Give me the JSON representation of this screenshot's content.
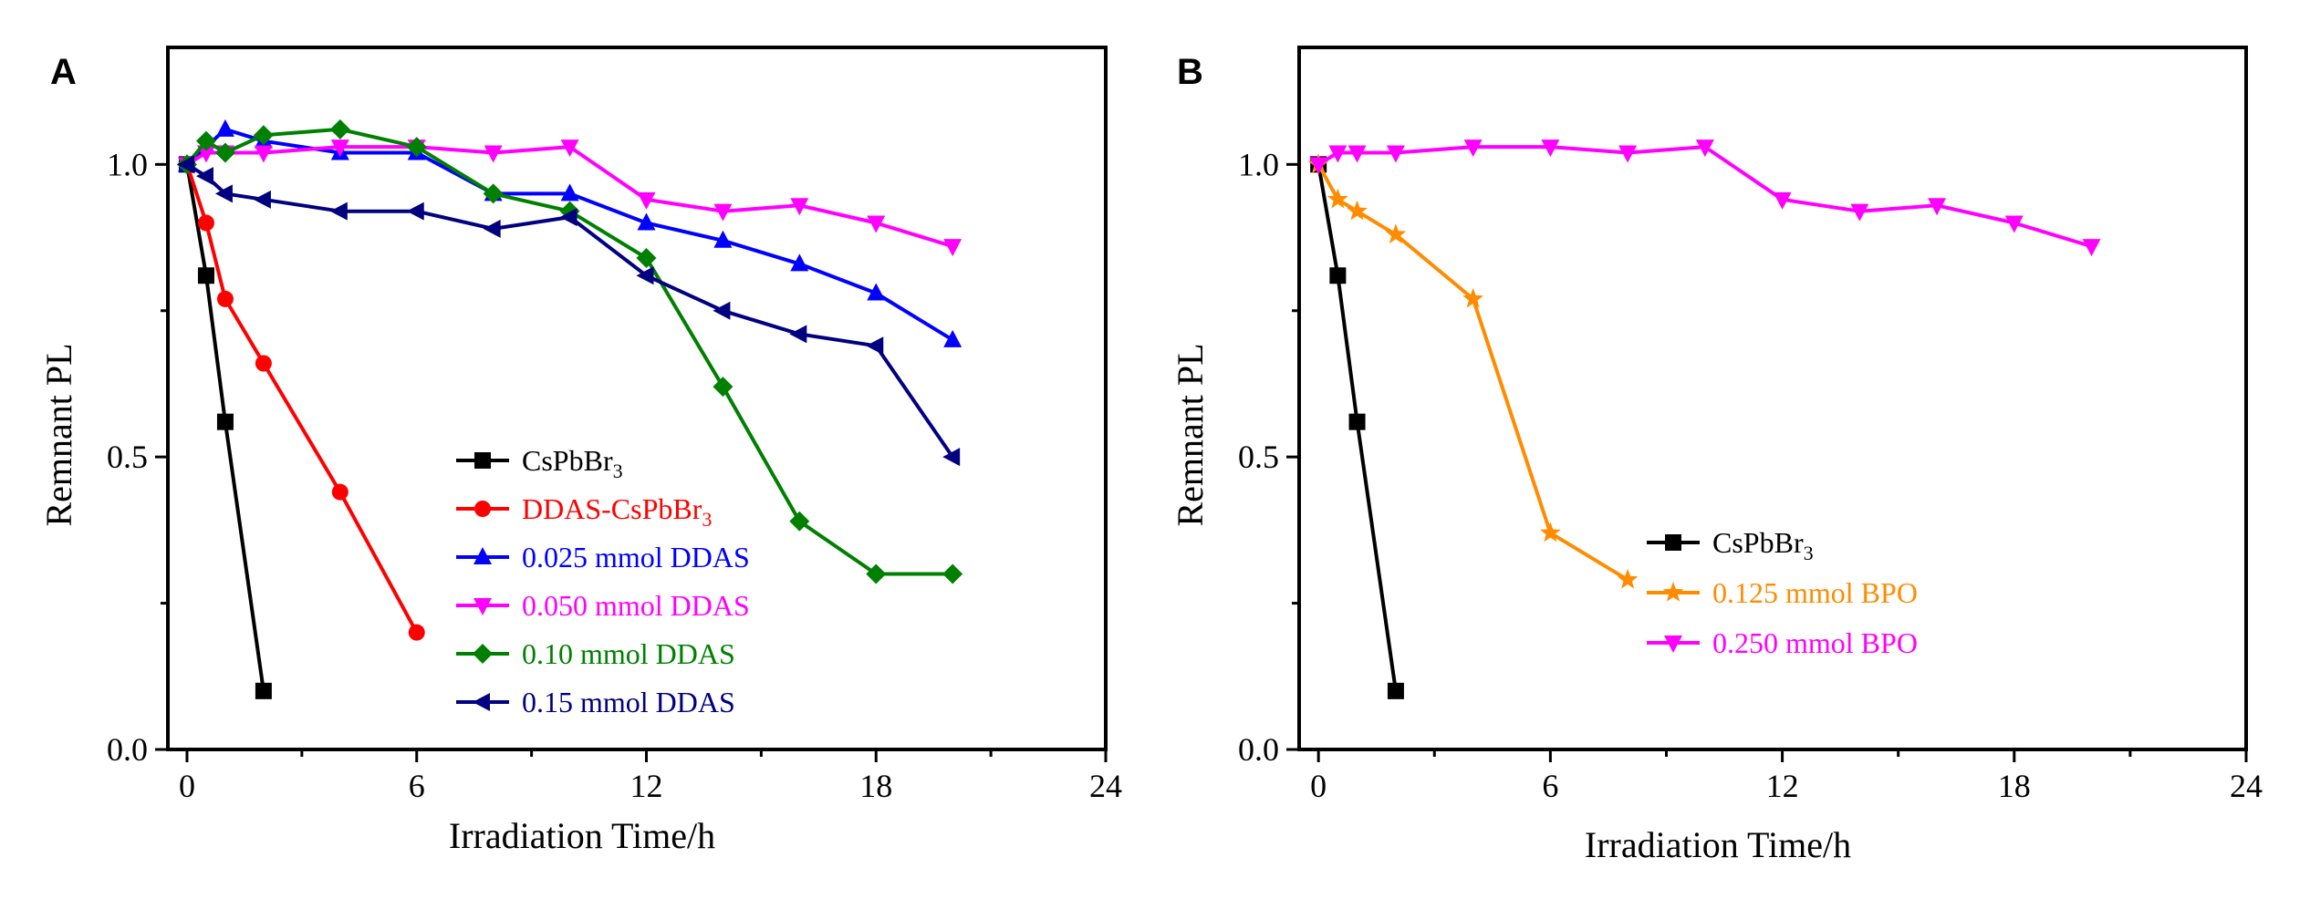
{
  "chart_data": [
    {
      "panel": "A",
      "type": "line",
      "xlabel": "Irradiation Time/h",
      "ylabel": "Remnant PL",
      "xlim": [
        -0.5,
        24
      ],
      "ylim": [
        0,
        1.2
      ],
      "xticks": [
        "0",
        "6",
        "12",
        "18",
        "24"
      ],
      "yticks": [
        "0.0",
        "0.5",
        "1.0"
      ],
      "legend_position": "center",
      "series": [
        {
          "name": "CsPbBr",
          "name_sub": "3",
          "color": "#000000",
          "marker": "square",
          "x": [
            0,
            0.5,
            1,
            2
          ],
          "y": [
            1.0,
            0.81,
            0.56,
            0.1
          ]
        },
        {
          "name": "DDAS-CsPbBr",
          "name_sub": "3",
          "color": "#ff0000",
          "marker": "circle",
          "x": [
            0,
            0.5,
            1,
            2,
            4,
            6
          ],
          "y": [
            1.0,
            0.9,
            0.77,
            0.66,
            0.44,
            0.2
          ]
        },
        {
          "name": "0.025 mmol DDAS",
          "name_sub": "",
          "color": "#0000ff",
          "marker": "triangle-up",
          "x": [
            0,
            0.5,
            1,
            2,
            4,
            6,
            8,
            10,
            12,
            14,
            16,
            18,
            20
          ],
          "y": [
            1.0,
            1.03,
            1.06,
            1.04,
            1.02,
            1.02,
            0.95,
            0.95,
            0.9,
            0.87,
            0.83,
            0.78,
            0.7
          ]
        },
        {
          "name": "0.050 mmol DDAS",
          "name_sub": "",
          "color": "#ff00ff",
          "marker": "triangle-down",
          "x": [
            0,
            0.5,
            1,
            2,
            4,
            6,
            8,
            10,
            12,
            14,
            16,
            18,
            20
          ],
          "y": [
            1.0,
            1.02,
            1.02,
            1.02,
            1.03,
            1.03,
            1.02,
            1.03,
            0.94,
            0.92,
            0.93,
            0.9,
            0.86
          ]
        },
        {
          "name": "0.10   mmol DDAS",
          "name_sub": "",
          "color": "#008000",
          "marker": "diamond",
          "x": [
            0,
            0.5,
            1,
            2,
            4,
            6,
            8,
            10,
            12,
            14,
            16,
            18,
            20
          ],
          "y": [
            1.0,
            1.04,
            1.02,
            1.05,
            1.06,
            1.03,
            0.95,
            0.92,
            0.84,
            0.62,
            0.39,
            0.3,
            0.3
          ]
        },
        {
          "name": "0.15   mmol DDAS",
          "name_sub": "",
          "color": "#000080",
          "marker": "triangle-left",
          "x": [
            0,
            0.5,
            1,
            2,
            4,
            6,
            8,
            10,
            12,
            14,
            16,
            18,
            20
          ],
          "y": [
            1.0,
            0.98,
            0.95,
            0.94,
            0.92,
            0.92,
            0.89,
            0.91,
            0.81,
            0.75,
            0.71,
            0.69,
            0.5
          ]
        }
      ]
    },
    {
      "panel": "B",
      "type": "line",
      "xlabel": "Irradiation Time/h",
      "ylabel": "Remnant PL",
      "xlim": [
        -0.5,
        24
      ],
      "ylim": [
        0,
        1.2
      ],
      "xticks": [
        "0",
        "6",
        "12",
        "18",
        "24"
      ],
      "yticks": [
        "0.0",
        "0.5",
        "1.0"
      ],
      "legend_position": "center",
      "series": [
        {
          "name": "CsPbBr",
          "name_sub": "3",
          "color": "#000000",
          "marker": "square",
          "x": [
            0,
            0.5,
            1,
            2
          ],
          "y": [
            1.0,
            0.81,
            0.56,
            0.1
          ]
        },
        {
          "name": "0.125 mmol BPO",
          "name_sub": "",
          "color": "#ff8c00",
          "marker": "star",
          "x": [
            0,
            0.5,
            1,
            2,
            4,
            6,
            8
          ],
          "y": [
            1.0,
            0.94,
            0.92,
            0.88,
            0.77,
            0.37,
            0.29
          ]
        },
        {
          "name": "0.250 mmol BPO",
          "name_sub": "",
          "color": "#ff00ff",
          "marker": "triangle-down",
          "x": [
            0,
            0.5,
            1,
            2,
            4,
            6,
            8,
            10,
            12,
            14,
            16,
            18,
            20
          ],
          "y": [
            1.0,
            1.02,
            1.02,
            1.02,
            1.03,
            1.03,
            1.02,
            1.03,
            0.94,
            0.92,
            0.93,
            0.9,
            0.86
          ]
        }
      ]
    }
  ]
}
